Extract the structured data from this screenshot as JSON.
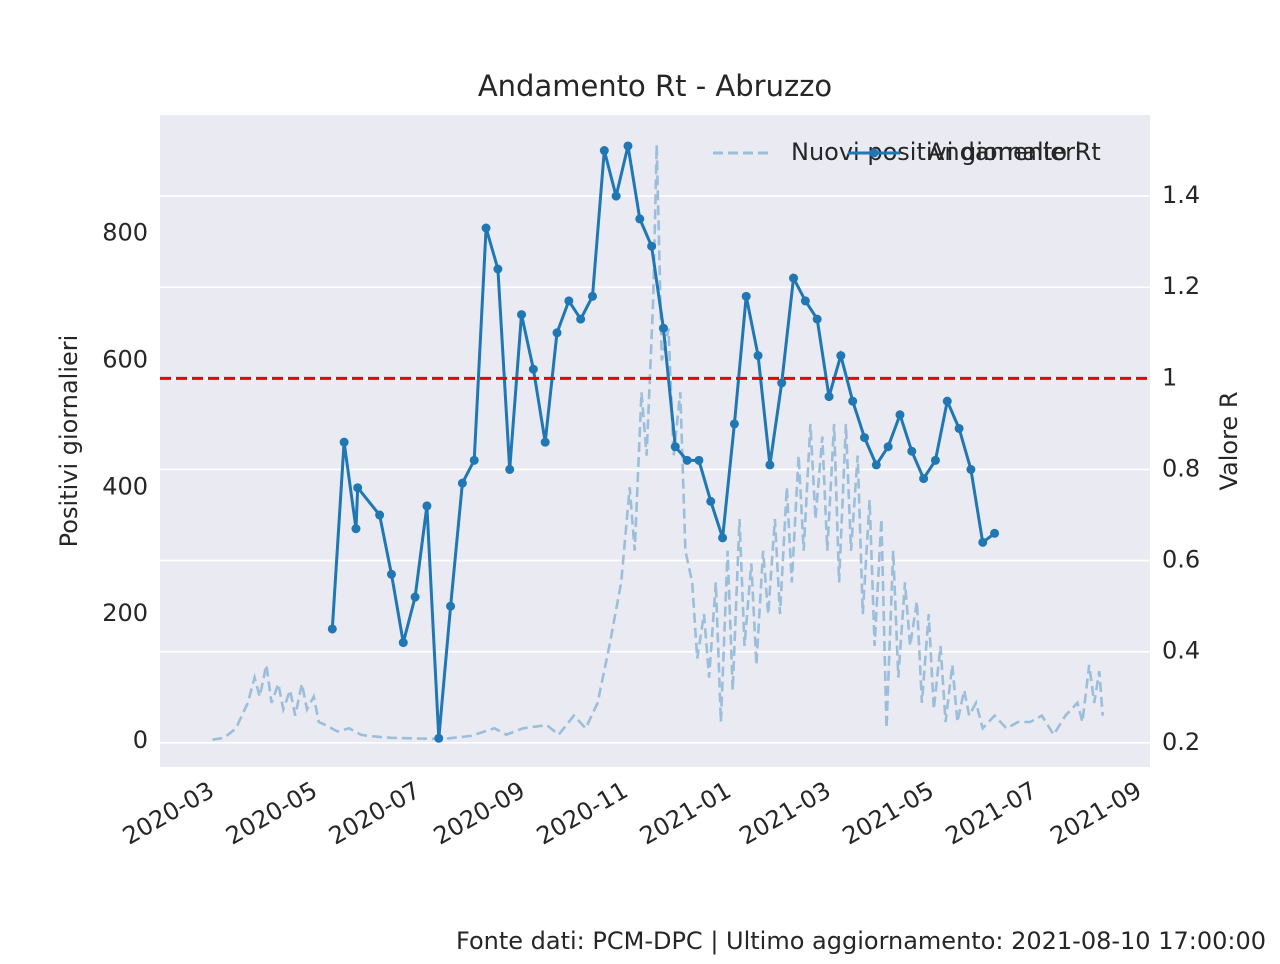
{
  "chart_data": {
    "type": "line",
    "title": "Andamento Rt - Abruzzo",
    "ylabel": "Positivi giornalieri",
    "y2label": "Valore R",
    "source": "Fonte dati: PCM-DPC | Ultimo aggiornamento: 2021-08-10 17:00:00",
    "xlim": [
      "2020-01-30",
      "2021-09-07"
    ],
    "xticks": [
      {
        "value": "2020-03-01",
        "label": "2020-03"
      },
      {
        "value": "2020-05-01",
        "label": "2020-05"
      },
      {
        "value": "2020-07-01",
        "label": "2020-07"
      },
      {
        "value": "2020-09-01",
        "label": "2020-09"
      },
      {
        "value": "2020-11-01",
        "label": "2020-11"
      },
      {
        "value": "2021-01-01",
        "label": "2021-01"
      },
      {
        "value": "2021-03-01",
        "label": "2021-03"
      },
      {
        "value": "2021-05-01",
        "label": "2021-05"
      },
      {
        "value": "2021-07-01",
        "label": "2021-07"
      },
      {
        "value": "2021-09-01",
        "label": "2021-09"
      }
    ],
    "ylim": [
      -41,
      987
    ],
    "yticks": [
      0,
      200,
      400,
      600,
      800
    ],
    "y2lim": [
      0.147,
      1.578
    ],
    "y2ticks": [
      0.2,
      0.4,
      0.6,
      0.8,
      1.0,
      1.2,
      1.4
    ],
    "grid": true,
    "legend": "upper right",
    "hline": {
      "value": 1.0,
      "axis": "y2",
      "color": "#e8000b"
    },
    "series": [
      {
        "name": "Nuovi positivi giornalieri",
        "color": "#9bbedb",
        "style": "dashed",
        "x": [
          "2020-03-01",
          "2020-03-08",
          "2020-03-15",
          "2020-03-22",
          "2020-03-26",
          "2020-03-29",
          "2020-04-02",
          "2020-04-05",
          "2020-04-09",
          "2020-04-12",
          "2020-04-16",
          "2020-04-19",
          "2020-04-23",
          "2020-04-26",
          "2020-04-30",
          "2020-05-03",
          "2020-05-07",
          "2020-05-14",
          "2020-05-21",
          "2020-05-28",
          "2020-06-01",
          "2020-06-15",
          "2020-07-01",
          "2020-07-15",
          "2020-08-01",
          "2020-08-15",
          "2020-08-22",
          "2020-09-01",
          "2020-09-15",
          "2020-09-22",
          "2020-10-01",
          "2020-10-08",
          "2020-10-15",
          "2020-10-22",
          "2020-10-29",
          "2020-11-03",
          "2020-11-06",
          "2020-11-10",
          "2020-11-13",
          "2020-11-17",
          "2020-11-19",
          "2020-11-22",
          "2020-11-26",
          "2020-11-29",
          "2020-12-03",
          "2020-12-06",
          "2020-12-10",
          "2020-12-13",
          "2020-12-17",
          "2020-12-20",
          "2020-12-24",
          "2020-12-27",
          "2020-12-31",
          "2021-01-03",
          "2021-01-07",
          "2021-01-10",
          "2021-01-14",
          "2021-01-17",
          "2021-01-21",
          "2021-01-24",
          "2021-01-28",
          "2021-01-31",
          "2021-02-04",
          "2021-02-07",
          "2021-02-11",
          "2021-02-14",
          "2021-02-18",
          "2021-02-21",
          "2021-02-25",
          "2021-02-28",
          "2021-03-04",
          "2021-03-07",
          "2021-03-11",
          "2021-03-14",
          "2021-03-18",
          "2021-03-21",
          "2021-03-25",
          "2021-03-28",
          "2021-04-01",
          "2021-04-04",
          "2021-04-08",
          "2021-04-11",
          "2021-04-15",
          "2021-04-18",
          "2021-04-22",
          "2021-04-25",
          "2021-04-29",
          "2021-05-02",
          "2021-05-06",
          "2021-05-09",
          "2021-05-13",
          "2021-05-16",
          "2021-05-20",
          "2021-05-23",
          "2021-05-27",
          "2021-05-31",
          "2021-06-07",
          "2021-06-14",
          "2021-06-21",
          "2021-06-28",
          "2021-07-05",
          "2021-07-12",
          "2021-07-19",
          "2021-07-26",
          "2021-07-29",
          "2021-08-02",
          "2021-08-05",
          "2021-08-08",
          "2021-08-10"
        ],
        "values": [
          2,
          5,
          20,
          60,
          100,
          70,
          120,
          60,
          90,
          50,
          80,
          40,
          90,
          50,
          70,
          30,
          25,
          15,
          20,
          10,
          8,
          5,
          4,
          3,
          8,
          20,
          10,
          20,
          25,
          10,
          40,
          20,
          60,
          150,
          250,
          400,
          300,
          550,
          450,
          700,
          940,
          600,
          650,
          450,
          550,
          300,
          250,
          130,
          200,
          100,
          250,
          30,
          300,
          80,
          350,
          150,
          280,
          120,
          300,
          200,
          350,
          200,
          400,
          250,
          450,
          300,
          500,
          350,
          480,
          300,
          500,
          250,
          500,
          300,
          450,
          200,
          380,
          150,
          350,
          20,
          300,
          100,
          250,
          150,
          220,
          60,
          200,
          50,
          150,
          30,
          120,
          30,
          80,
          40,
          60,
          20,
          40,
          20,
          30,
          30,
          40,
          10,
          40,
          60,
          30,
          120,
          60,
          110,
          40
        ]
      },
      {
        "name": "Andamento Rt",
        "color": "#1f77b4",
        "axis": "y2",
        "marker": "o",
        "x": [
          "2020-05-11",
          "2020-05-18",
          "2020-05-25",
          "2020-05-26",
          "2020-06-08",
          "2020-06-15",
          "2020-06-22",
          "2020-06-29",
          "2020-07-06",
          "2020-07-13",
          "2020-07-20",
          "2020-07-27",
          "2020-08-03",
          "2020-08-10",
          "2020-08-17",
          "2020-08-24",
          "2020-08-31",
          "2020-09-07",
          "2020-09-14",
          "2020-09-21",
          "2020-09-28",
          "2020-10-05",
          "2020-10-12",
          "2020-10-19",
          "2020-10-26",
          "2020-11-02",
          "2020-11-09",
          "2020-11-16",
          "2020-11-23",
          "2020-11-30",
          "2020-12-07",
          "2020-12-14",
          "2020-12-21",
          "2020-12-28",
          "2021-01-04",
          "2021-01-11",
          "2021-01-18",
          "2021-01-25",
          "2021-02-01",
          "2021-02-08",
          "2021-02-15",
          "2021-02-22",
          "2021-03-01",
          "2021-03-08",
          "2021-03-15",
          "2021-03-22",
          "2021-03-29",
          "2021-04-05",
          "2021-04-12",
          "2021-04-19",
          "2021-04-26",
          "2021-05-03",
          "2021-05-10",
          "2021-05-17",
          "2021-05-24",
          "2021-05-31",
          "2021-06-07"
        ],
        "values": [
          0.45,
          0.86,
          0.67,
          0.76,
          0.7,
          0.57,
          0.42,
          0.52,
          0.72,
          0.21,
          0.5,
          0.77,
          0.82,
          1.33,
          1.24,
          0.8,
          1.14,
          1.02,
          0.86,
          1.1,
          1.17,
          1.13,
          1.18,
          1.5,
          1.4,
          1.51,
          1.35,
          1.29,
          1.11,
          0.85,
          0.82,
          0.82,
          0.73,
          0.65,
          0.9,
          1.18,
          1.05,
          0.81,
          0.99,
          1.22,
          1.17,
          1.13,
          0.96,
          1.05,
          0.95,
          0.87,
          0.81,
          0.85,
          0.92,
          0.84,
          0.78,
          0.82,
          0.95,
          0.89,
          0.8,
          0.64,
          0.66
        ]
      }
    ]
  }
}
